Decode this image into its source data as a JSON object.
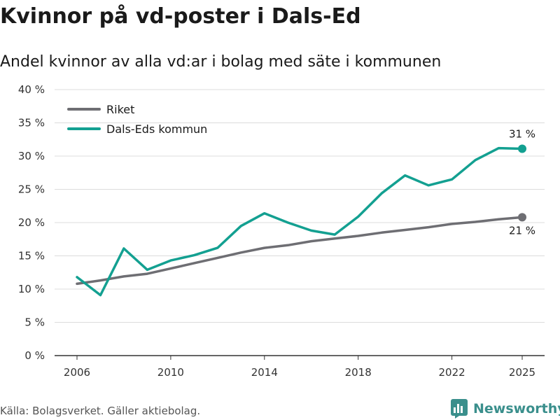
{
  "title": "Kvinnor på vd-poster i Dals-Ed",
  "subtitle": "Andel kvinnor av alla vd:ar i bolag med säte i kommunen",
  "source": "Källa: Bolagsverket. Gäller aktiebolag.",
  "brand": {
    "name": "Newsworthy",
    "icon": "newsworthy-logo-icon",
    "color": "#3a8f8c"
  },
  "chart_data": {
    "type": "line",
    "x": [
      2006,
      2007,
      2008,
      2009,
      2010,
      2011,
      2012,
      2013,
      2014,
      2015,
      2016,
      2017,
      2018,
      2019,
      2020,
      2021,
      2022,
      2023,
      2024,
      2025
    ],
    "xlim": [
      2006,
      2025
    ],
    "ylim": [
      0,
      40
    ],
    "y_ticks": [
      0,
      5,
      10,
      15,
      20,
      25,
      30,
      35,
      40
    ],
    "y_tick_labels": [
      "0 %",
      "5 %",
      "10 %",
      "15 %",
      "20 %",
      "25 %",
      "30 %",
      "35 %",
      "40 %"
    ],
    "x_ticks": [
      2006,
      2010,
      2014,
      2018,
      2022,
      2025
    ],
    "x_tick_labels": [
      "2006",
      "2010",
      "2014",
      "2018",
      "2022",
      "2025"
    ],
    "grid": "horizontal",
    "legend_position": "top-left",
    "series": [
      {
        "name": "Riket",
        "color": "#6e6e73",
        "values": [
          10.8,
          11.3,
          11.9,
          12.3,
          13.1,
          13.9,
          14.7,
          15.5,
          16.2,
          16.6,
          17.2,
          17.6,
          18.0,
          18.5,
          18.9,
          19.3,
          19.8,
          20.1,
          20.5,
          20.8
        ],
        "end_label": "21 %"
      },
      {
        "name": "Dals-Eds kommun",
        "color": "#13a091",
        "values": [
          11.8,
          9.1,
          16.1,
          12.9,
          14.3,
          15.1,
          16.2,
          19.5,
          21.4,
          20.0,
          18.8,
          18.2,
          20.9,
          24.4,
          27.1,
          25.6,
          26.5,
          29.4,
          31.2,
          31.1
        ],
        "end_label": "31 %"
      }
    ]
  }
}
